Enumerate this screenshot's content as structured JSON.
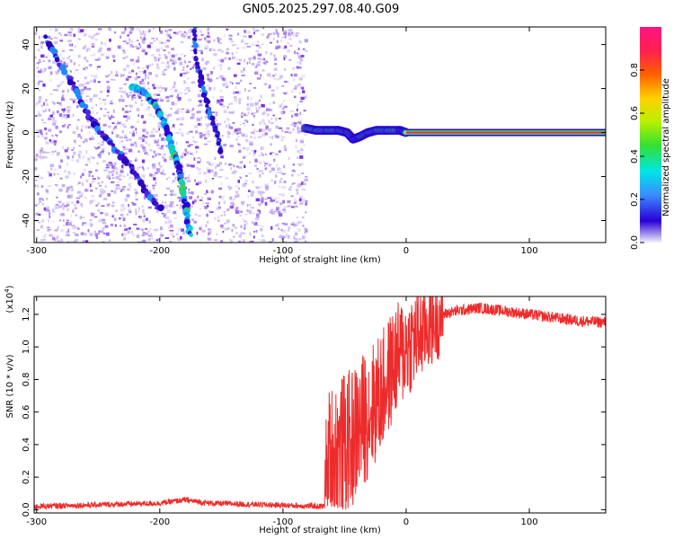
{
  "title": "GN05.2025.297.08.40.G09",
  "colors": {
    "axis": "#000000",
    "snr_line": "#ee2b2b",
    "scatter_violet": "#6a1ee0",
    "scatter_light": "#c7b2f2"
  },
  "chart_data": [
    {
      "id": "spectrogram",
      "type": "heatmap",
      "xlabel": "Height of straight line (km)",
      "ylabel": "Frequency (Hz)",
      "xlim": [
        -302,
        162
      ],
      "ylim": [
        -50,
        48
      ],
      "xticks": [
        -300,
        -200,
        -100,
        0,
        100
      ],
      "yticks": [
        -40,
        -20,
        0,
        20,
        40
      ],
      "noise_region_x": [
        -302,
        -82
      ],
      "carrier_start_x": 0,
      "carrier_frequency": 0,
      "descending_track_points": [
        [
          -293,
          43
        ],
        [
          -280,
          30
        ],
        [
          -268,
          20
        ],
        [
          -256,
          6
        ],
        [
          -245,
          -2
        ],
        [
          -232,
          -10
        ],
        [
          -220,
          -18
        ],
        [
          -210,
          -28
        ],
        [
          -200,
          -34
        ]
      ],
      "steep_track_points": [
        [
          -172,
          48
        ],
        [
          -170,
          33
        ],
        [
          -166,
          22
        ],
        [
          -160,
          10
        ],
        [
          -155,
          2
        ],
        [
          -150,
          -8
        ]
      ],
      "bright_arc_points": [
        [
          -222,
          21
        ],
        [
          -212,
          18
        ],
        [
          -202,
          11
        ],
        [
          -196,
          4
        ],
        [
          -191,
          -5
        ],
        [
          -186,
          -14
        ],
        [
          -181,
          -26
        ],
        [
          -178,
          -36
        ],
        [
          -175,
          -48
        ]
      ],
      "transition_points": [
        [
          -82,
          2
        ],
        [
          -73,
          1
        ],
        [
          -64,
          1
        ],
        [
          -55,
          1
        ],
        [
          -48,
          0
        ],
        [
          -43,
          -3
        ],
        [
          -38,
          -2
        ],
        [
          -31,
          0
        ],
        [
          -24,
          1
        ],
        [
          -15,
          1
        ],
        [
          -5,
          1
        ],
        [
          0,
          0
        ]
      ]
    },
    {
      "id": "colorbar",
      "type": "colorbar",
      "label": "Normalized spectral amplitude",
      "range": [
        0,
        1
      ],
      "ticks": [
        0.0,
        0.2,
        0.4,
        0.6,
        0.8
      ],
      "colormap": [
        "#f3f0fb",
        "#2a00d6",
        "#3a8cff",
        "#00e6e6",
        "#33e033",
        "#b8f000",
        "#ffd000",
        "#ff6000",
        "#ff2050",
        "#ff1480"
      ]
    },
    {
      "id": "snr",
      "type": "line",
      "xlabel": "Height of straight line (km)",
      "ylabel": "SNR (10 * v/v)",
      "yscale_label": "(x10",
      "yscale_exponent": "4",
      "yscale_close": ")",
      "xlim": [
        -302,
        162
      ],
      "ylim": [
        -0.02,
        1.31
      ],
      "xticks": [
        -300,
        -200,
        -100,
        0,
        100
      ],
      "yticks": [
        0.0,
        0.2,
        0.4,
        0.6,
        0.8,
        1.0,
        1.2
      ],
      "baseline_level": 0.02,
      "envelope": [
        [
          -302,
          0.02
        ],
        [
          -200,
          0.04
        ],
        [
          -180,
          0.06
        ],
        [
          -160,
          0.04
        ],
        [
          -66,
          0.02
        ],
        [
          -62,
          0.3
        ],
        [
          -55,
          0.35
        ],
        [
          -45,
          0.42
        ],
        [
          -35,
          0.55
        ],
        [
          -20,
          0.72
        ],
        [
          -10,
          0.9
        ],
        [
          0,
          1.0
        ],
        [
          10,
          1.07
        ],
        [
          20,
          1.15
        ],
        [
          30,
          1.2
        ],
        [
          40,
          1.22
        ],
        [
          60,
          1.24
        ],
        [
          80,
          1.22
        ],
        [
          100,
          1.2
        ],
        [
          120,
          1.18
        ],
        [
          140,
          1.16
        ],
        [
          162,
          1.15
        ]
      ]
    }
  ]
}
